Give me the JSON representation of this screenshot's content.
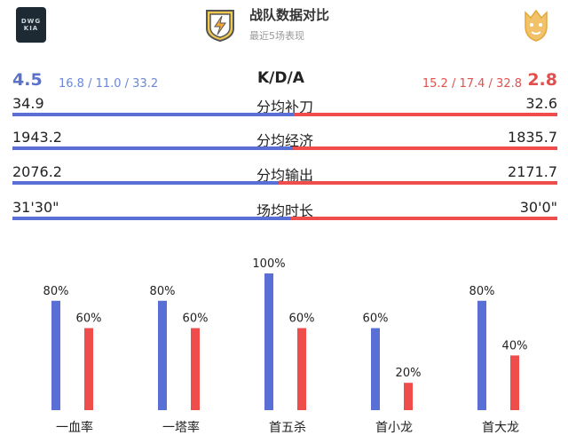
{
  "header": {
    "title": "战队数据对比",
    "subtitle": "最近5场表现",
    "left_logo_text": "DWG KIA",
    "colors": {
      "left": "#5a6fd6",
      "right": "#ef4c4c"
    }
  },
  "kda": {
    "label": "K/D/A",
    "left_ratio": "4.5",
    "left_detail": "16.8 / 11.0 / 33.2",
    "right_detail": "15.2 / 17.4 / 32.8",
    "right_ratio": "2.8"
  },
  "stats": [
    {
      "label": "分均补刀",
      "left": "34.9",
      "right": "32.6",
      "left_share": 0.517
    },
    {
      "label": "分均经济",
      "left": "1943.2",
      "right": "1835.7",
      "left_share": 0.514
    },
    {
      "label": "分均输出",
      "left": "2076.2",
      "right": "2171.7",
      "left_share": 0.489
    },
    {
      "label": "场均时长",
      "left": "31'30\"",
      "right": "30'0\"",
      "left_share": 0.512
    }
  ],
  "chart_data": {
    "type": "bar",
    "categories": [
      "一血率",
      "一塔率",
      "首五杀",
      "首小龙",
      "首大龙"
    ],
    "series": [
      {
        "values": [
          80,
          80,
          100,
          60,
          80
        ],
        "labels": [
          "80%",
          "80%",
          "100%",
          "60%",
          "80%"
        ],
        "color": "#5a6fd6"
      },
      {
        "values": [
          60,
          60,
          60,
          20,
          40
        ],
        "labels": [
          "60%",
          "60%",
          "60%",
          "20%",
          "40%"
        ],
        "color": "#ef4c4c"
      }
    ],
    "ylim": [
      0,
      100
    ]
  }
}
